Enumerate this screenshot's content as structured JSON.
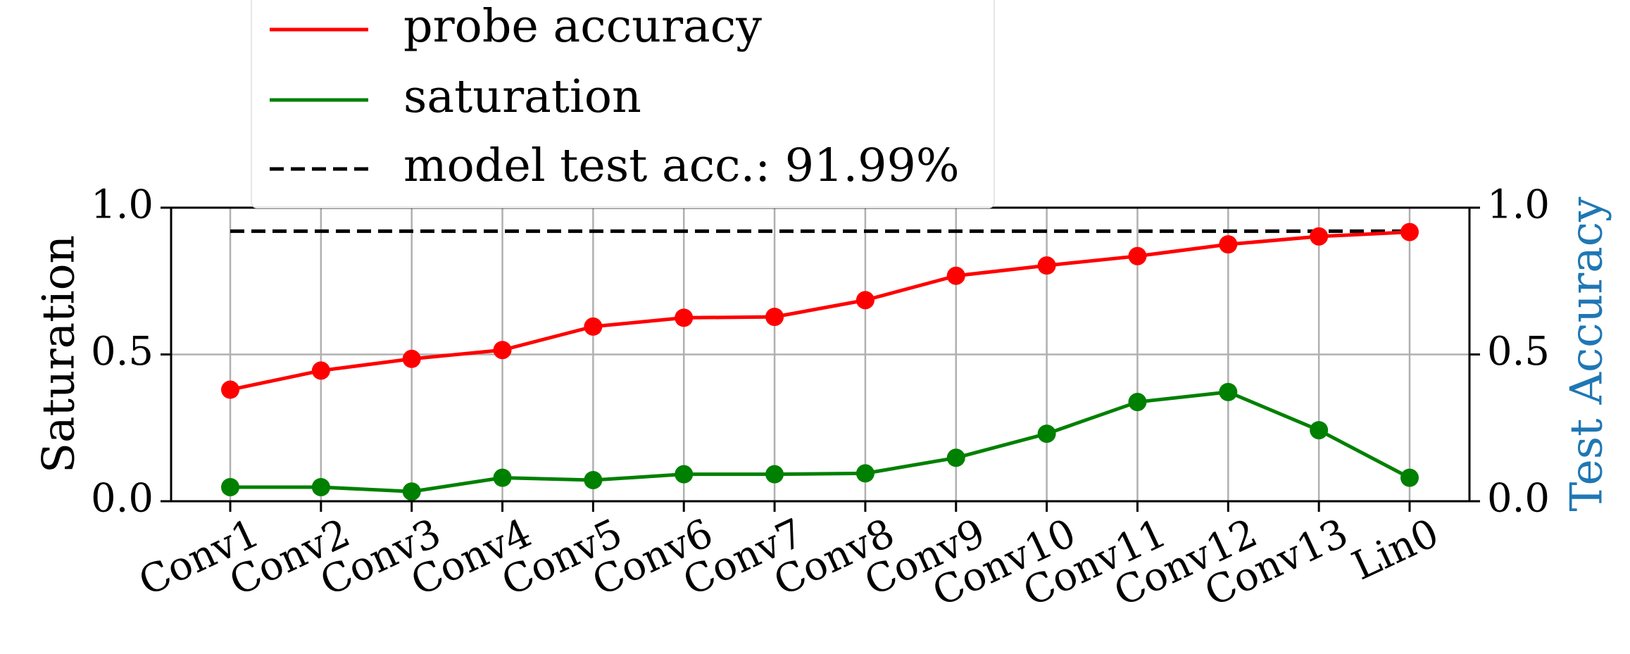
{
  "chart_data": {
    "type": "line",
    "categories": [
      "Conv1",
      "Conv2",
      "Conv3",
      "Conv4",
      "Conv5",
      "Conv6",
      "Conv7",
      "Conv8",
      "Conv9",
      "Conv10",
      "Conv11",
      "Conv12",
      "Conv13",
      "Lin0"
    ],
    "series": [
      {
        "name": "probe accuracy",
        "color": "#ff0000",
        "axis": "right",
        "values": [
          0.38,
          0.445,
          0.485,
          0.515,
          0.595,
          0.625,
          0.628,
          0.685,
          0.768,
          0.803,
          0.835,
          0.875,
          0.902,
          0.917
        ]
      },
      {
        "name": "saturation",
        "color": "#008000",
        "axis": "left",
        "values": [
          0.048,
          0.048,
          0.033,
          0.08,
          0.072,
          0.092,
          0.092,
          0.095,
          0.148,
          0.23,
          0.338,
          0.372,
          0.242,
          0.08
        ]
      }
    ],
    "reference_line": {
      "name": "model test acc.: 91.99%",
      "value": 0.9199,
      "color": "#000000",
      "style": "dashed"
    },
    "ylabel": "Saturation",
    "ylabel_right": "Test Accuracy",
    "ylabel_right_color": "#1f77b4",
    "ylim": [
      0,
      1
    ],
    "ylim_right": [
      0,
      1
    ],
    "yticks": [
      "0.0",
      "0.5",
      "1.0"
    ],
    "yticks_right": [
      "0.0",
      "0.5",
      "1.0"
    ],
    "grid": true,
    "legend_position": "top-left, above the axes"
  }
}
